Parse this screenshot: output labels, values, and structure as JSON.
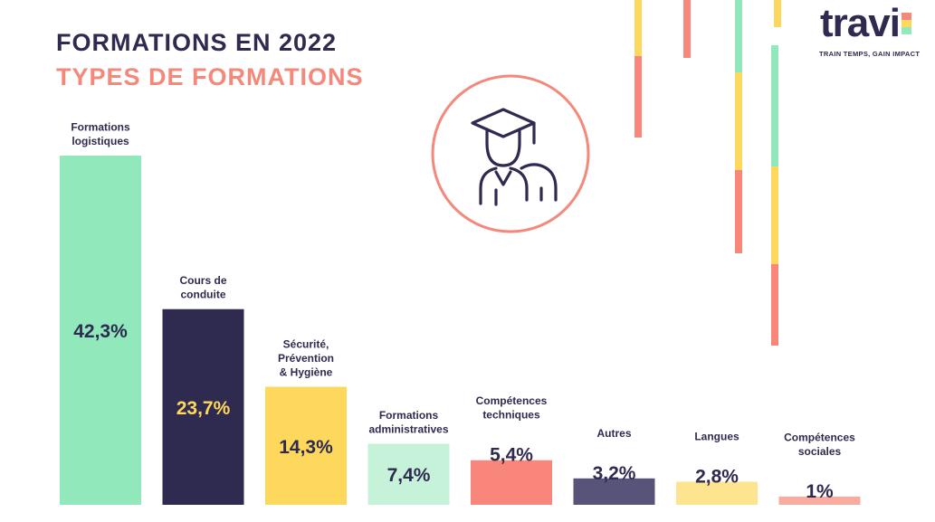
{
  "header": {
    "title": "FORMATIONS EN 2022",
    "subtitle": "TYPES DE FORMATIONS"
  },
  "logo": {
    "text": "travi",
    "tagline": "TRAIN TEMPS, GAIN IMPACT"
  },
  "icons": {
    "central": "graduate-icon"
  },
  "colors": {
    "dark": "#2f2a4f",
    "coral": "#f4897b",
    "green": "#90e8bb",
    "yellow": "#fdd85d",
    "light_green": "#c7f2da",
    "grey_purple": "#585378",
    "light_yellow": "#fde48f",
    "light_coral": "#f9aba0"
  },
  "chart_data": {
    "type": "bar",
    "categories": [
      [
        "Formations",
        "logistiques"
      ],
      [
        "Cours de",
        "conduite"
      ],
      [
        "Sécurité,",
        "Prévention",
        "& Hygiène"
      ],
      [
        "Formations",
        "administratives"
      ],
      [
        "Compétences",
        "techniques"
      ],
      [
        "Autres"
      ],
      [
        "Langues"
      ],
      [
        "Compétences",
        "sociales"
      ]
    ],
    "values": [
      42.3,
      23.7,
      14.3,
      7.4,
      5.4,
      3.2,
      2.8,
      1
    ],
    "labels": [
      "42,3%",
      "23,7%",
      "14,3%",
      "7,4%",
      "5,4%",
      "3,2%",
      "2,8%",
      "1%"
    ],
    "colors": [
      "#90e8bb",
      "#2f2a4f",
      "#fdd85d",
      "#c7f2da",
      "#f9867a",
      "#585378",
      "#fde48f",
      "#f9aba0"
    ],
    "label_colors": [
      "#2f2a4f",
      "#fdd85d",
      "#2f2a4f",
      "#2f2a4f",
      "#2f2a4f",
      "#2f2a4f",
      "#2f2a4f",
      "#2f2a4f"
    ],
    "ylim": [
      0,
      42.3
    ],
    "grid": false,
    "legend": "none"
  }
}
